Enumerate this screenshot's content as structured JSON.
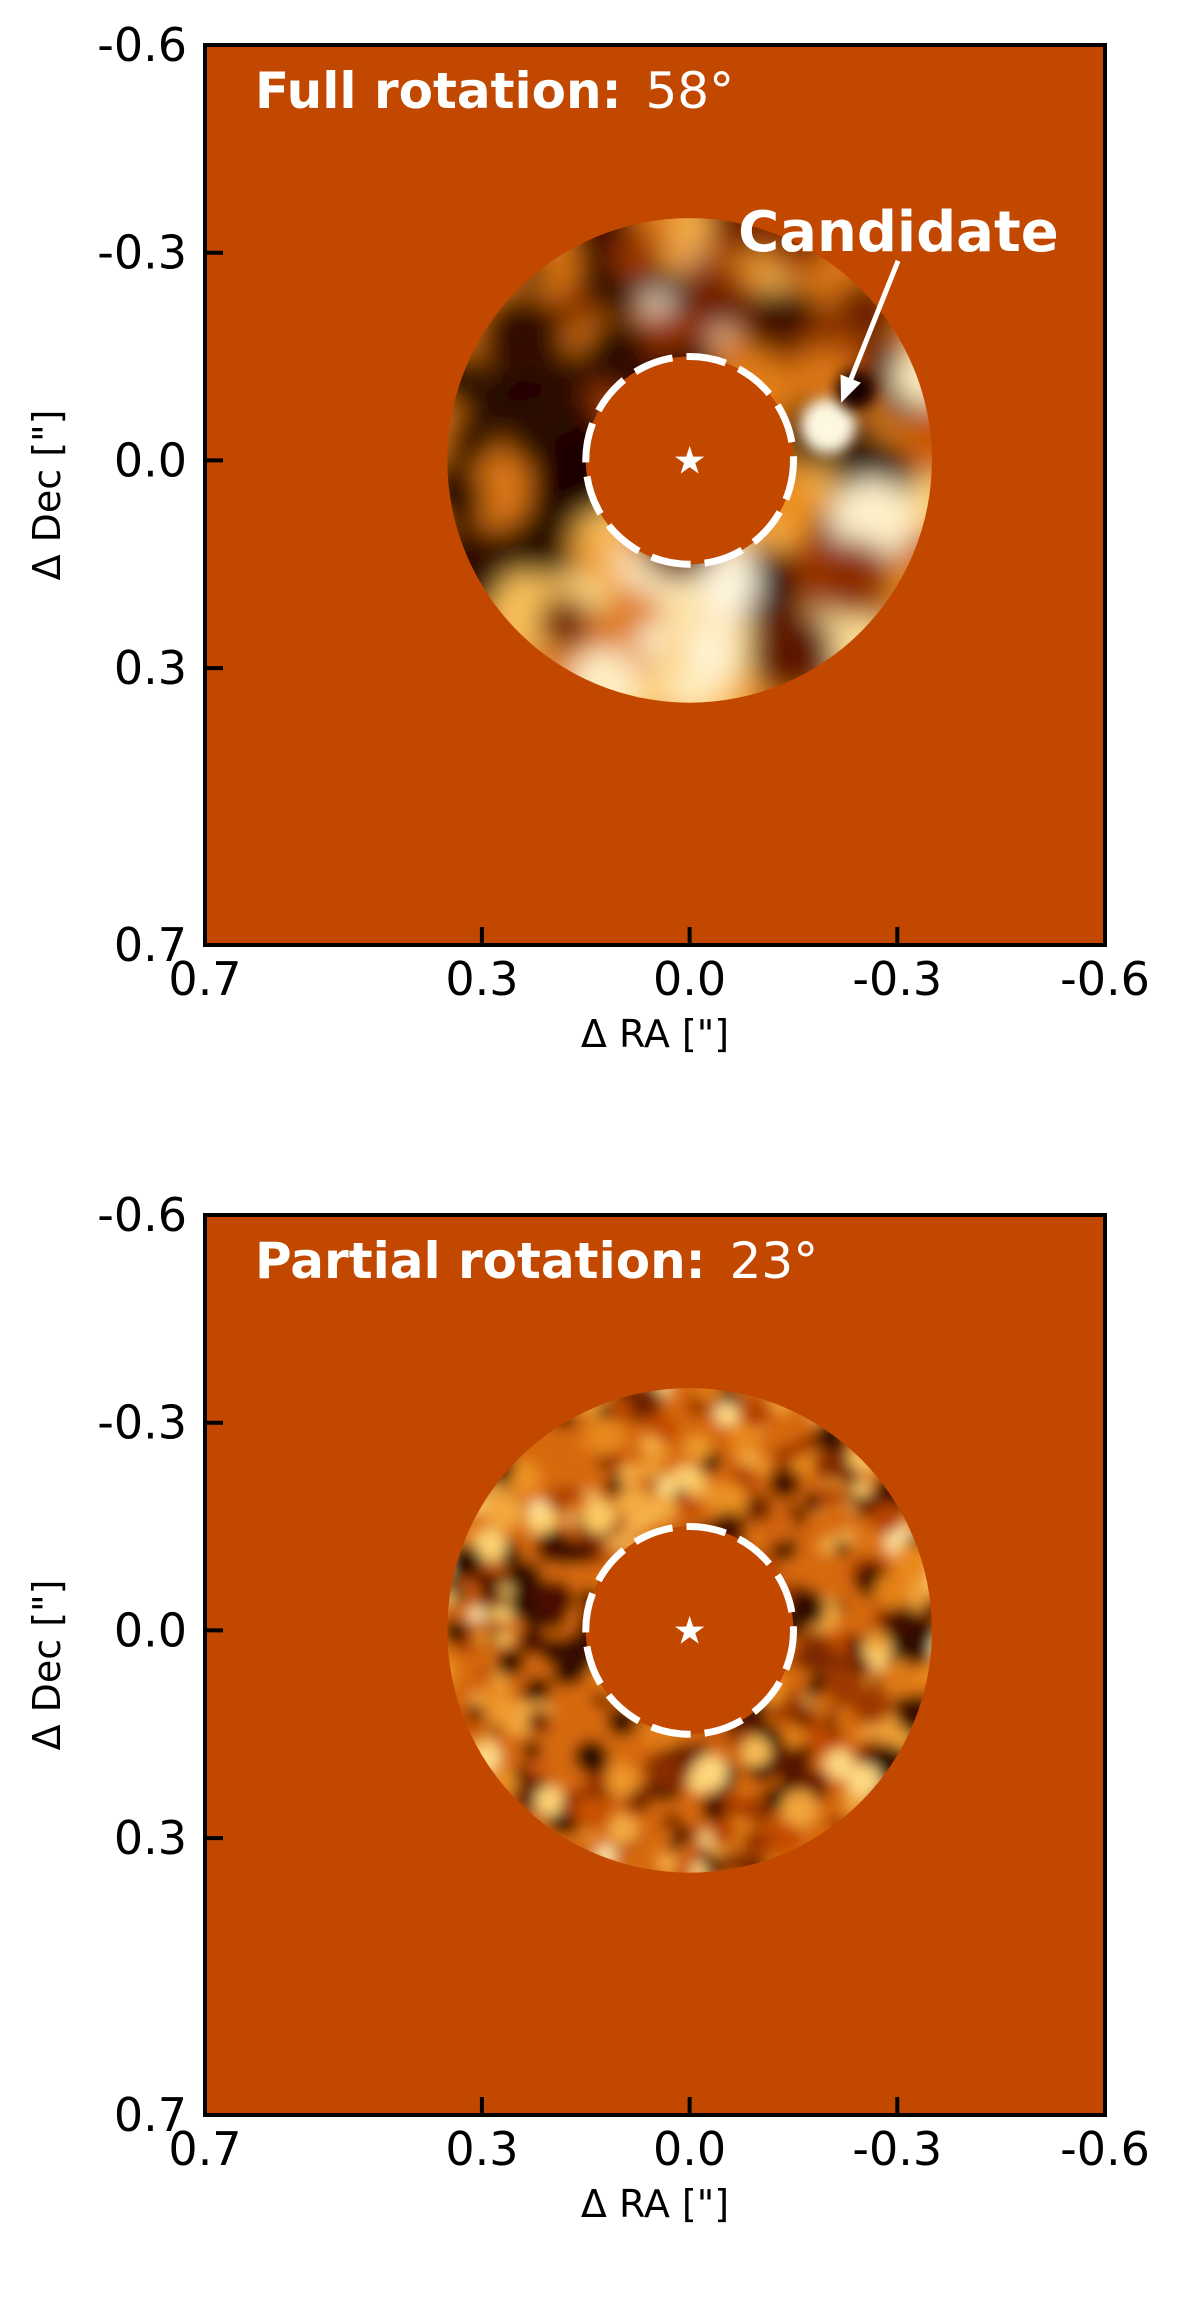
{
  "colors": {
    "background": "#C24800",
    "frame": "#000000",
    "annotation": "#FFFFFF",
    "dark": "#1A0500",
    "bright": "#FFF4D8"
  },
  "panels": [
    {
      "label_bold": "Full rotation:",
      "label_value": "58°",
      "candidate_label": "Candidate",
      "xlabel": "Δ RA [\"]",
      "ylabel": "Δ Dec [\"]",
      "xticks": [
        "0.7",
        "0.3",
        "0.0",
        "-0.3",
        "-0.6"
      ],
      "yticks": [
        "-0.6",
        "-0.3",
        "0.0",
        "0.3",
        "0.7"
      ]
    },
    {
      "label_bold": "Partial rotation:",
      "label_value": "23°",
      "xlabel": "Δ RA [\"]",
      "ylabel": "Δ Dec [\"]",
      "xticks": [
        "0.7",
        "0.3",
        "0.0",
        "-0.3",
        "-0.6"
      ],
      "yticks": [
        "-0.6",
        "-0.3",
        "0.0",
        "0.3",
        "0.7"
      ]
    }
  ],
  "chart_data": [
    {
      "type": "heatmap",
      "subject": "direct image residual map",
      "xlim": [
        0.7,
        -0.6
      ],
      "ylim": [
        -0.6,
        0.7
      ],
      "x_tick_values": [
        0.7,
        0.3,
        0.0,
        -0.3,
        -0.6
      ],
      "y_tick_values": [
        -0.6,
        -0.3,
        0.0,
        0.3,
        0.7
      ],
      "star_position": [
        0.0,
        0.0
      ],
      "mask_radius": 0.15,
      "data_region_radius": 0.35,
      "candidate_position": [
        -0.2,
        -0.05
      ],
      "colormap": "afmhot"
    },
    {
      "type": "heatmap",
      "subject": "direct image residual map",
      "xlim": [
        0.7,
        -0.6
      ],
      "ylim": [
        -0.6,
        0.7
      ],
      "x_tick_values": [
        0.7,
        0.3,
        0.0,
        -0.3,
        -0.6
      ],
      "y_tick_values": [
        -0.6,
        -0.3,
        0.0,
        0.3,
        0.7
      ],
      "star_position": [
        0.0,
        0.0
      ],
      "mask_radius": 0.15,
      "data_region_radius": 0.35,
      "colormap": "afmhot"
    }
  ]
}
